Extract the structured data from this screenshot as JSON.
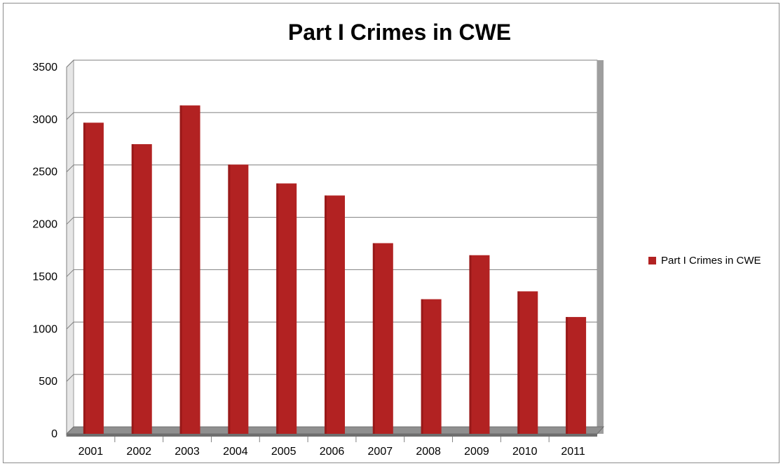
{
  "colors": {
    "bar": "#b22222",
    "bar_dark": "#7a1010",
    "grid": "#7f7f7f",
    "wall": "#d9d9d9"
  },
  "chart_data": {
    "type": "bar",
    "title": "Part I Crimes in CWE",
    "categories": [
      "2001",
      "2002",
      "2003",
      "2004",
      "2005",
      "2006",
      "2007",
      "2008",
      "2009",
      "2010",
      "2011"
    ],
    "series": [
      {
        "name": "Part I Crimes in CWE",
        "values": [
          2970,
          2765,
          3135,
          2570,
          2390,
          2275,
          1820,
          1285,
          1705,
          1360,
          1115
        ]
      }
    ],
    "yticks": [
      "0",
      "500",
      "1000",
      "1500",
      "2000",
      "2500",
      "3000",
      "3500"
    ],
    "ylim": [
      0,
      3500
    ],
    "grid": true,
    "legend_position": "right"
  }
}
